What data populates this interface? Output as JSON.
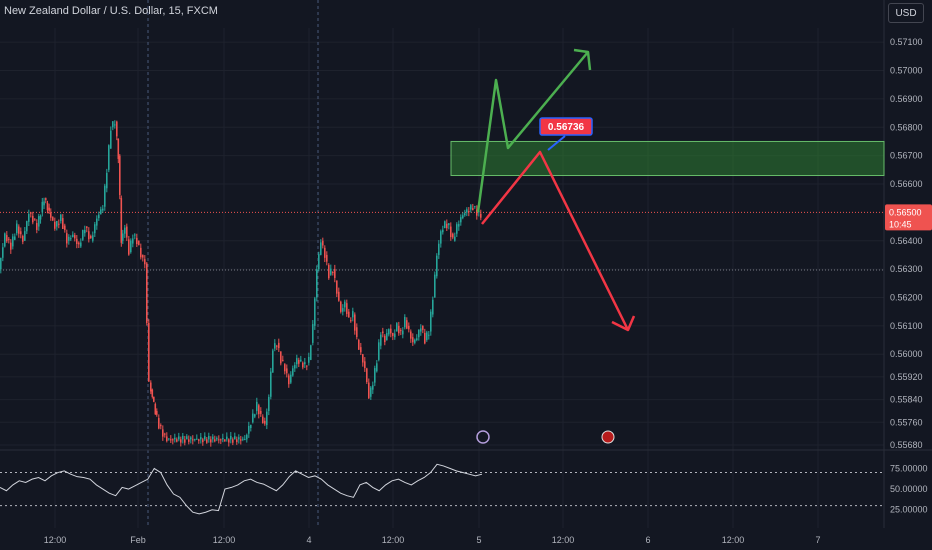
{
  "header": {
    "title": "New Zealand Dollar / U.S. Dollar, 15, FXCM",
    "currency_button": "USD"
  },
  "colors": {
    "up": "#26a69a",
    "down": "#ef5350",
    "bg": "#131722",
    "grid": "#1e222d",
    "zone": "#2e7d32",
    "arrow_green": "#4caf50",
    "arrow_red": "#f23645"
  },
  "chart_data": [
    {
      "type": "candlestick",
      "title": "New Zealand Dollar / U.S. Dollar, 15, FXCM",
      "y_ticks": [
        "0.57100",
        "0.57000",
        "0.56900",
        "0.56800",
        "0.56700",
        "0.56600",
        "0.56400",
        "0.56300",
        "0.56200",
        "0.56100",
        "0.56000",
        "0.55920",
        "0.55840",
        "0.55760",
        "0.55680"
      ],
      "x_ticks": [
        "12:00",
        "Feb",
        "12:00",
        "4",
        "12:00",
        "5",
        "12:00",
        "6",
        "12:00",
        "7"
      ],
      "current_price": "0.56500",
      "countdown": "10:45",
      "annotation_label": "0.56736",
      "zone": {
        "low": 0.5663,
        "high": 0.5675
      },
      "price_path": [
        [
          0,
          0.563
        ],
        [
          6,
          0.5642
        ],
        [
          12,
          0.5638
        ],
        [
          18,
          0.5645
        ],
        [
          24,
          0.564
        ],
        [
          30,
          0.565
        ],
        [
          38,
          0.5645
        ],
        [
          45,
          0.5655
        ],
        [
          50,
          0.565
        ],
        [
          56,
          0.5645
        ],
        [
          62,
          0.5648
        ],
        [
          68,
          0.564
        ],
        [
          74,
          0.5642
        ],
        [
          80,
          0.5638
        ],
        [
          86,
          0.5645
        ],
        [
          92,
          0.564
        ],
        [
          98,
          0.5648
        ],
        [
          104,
          0.5652
        ],
        [
          108,
          0.5665
        ],
        [
          112,
          0.568
        ],
        [
          116,
          0.5682
        ],
        [
          119,
          0.567
        ],
        [
          122,
          0.564
        ],
        [
          126,
          0.5645
        ],
        [
          130,
          0.5636
        ],
        [
          134,
          0.5642
        ],
        [
          138,
          0.564
        ],
        [
          142,
          0.5635
        ],
        [
          146,
          0.5632
        ],
        [
          150,
          0.559
        ],
        [
          153,
          0.5585
        ],
        [
          156,
          0.558
        ],
        [
          160,
          0.5575
        ],
        [
          164,
          0.5572
        ],
        [
          168,
          0.557
        ],
        [
          246,
          0.557
        ],
        [
          250,
          0.5574
        ],
        [
          254,
          0.5578
        ],
        [
          258,
          0.5582
        ],
        [
          262,
          0.5578
        ],
        [
          266,
          0.5575
        ],
        [
          270,
          0.5585
        ],
        [
          274,
          0.5602
        ],
        [
          278,
          0.5604
        ],
        [
          282,
          0.5598
        ],
        [
          286,
          0.5595
        ],
        [
          290,
          0.559
        ],
        [
          294,
          0.5595
        ],
        [
          298,
          0.5598
        ],
        [
          302,
          0.5597
        ],
        [
          306,
          0.5596
        ],
        [
          310,
          0.5598
        ],
        [
          314,
          0.561
        ],
        [
          318,
          0.563
        ],
        [
          322,
          0.564
        ],
        [
          326,
          0.5635
        ],
        [
          330,
          0.5628
        ],
        [
          334,
          0.563
        ],
        [
          338,
          0.5622
        ],
        [
          342,
          0.5615
        ],
        [
          346,
          0.5618
        ],
        [
          350,
          0.5612
        ],
        [
          354,
          0.5614
        ],
        [
          358,
          0.5605
        ],
        [
          362,
          0.56
        ],
        [
          366,
          0.5595
        ],
        [
          370,
          0.5585
        ],
        [
          374,
          0.559
        ],
        [
          378,
          0.5598
        ],
        [
          382,
          0.5608
        ],
        [
          386,
          0.5605
        ],
        [
          390,
          0.5609
        ],
        [
          394,
          0.5606
        ],
        [
          398,
          0.561
        ],
        [
          402,
          0.5607
        ],
        [
          406,
          0.5612
        ],
        [
          410,
          0.5608
        ],
        [
          414,
          0.5604
        ],
        [
          418,
          0.5606
        ],
        [
          422,
          0.561
        ],
        [
          426,
          0.5605
        ],
        [
          430,
          0.5608
        ],
        [
          434,
          0.562
        ],
        [
          438,
          0.5635
        ],
        [
          442,
          0.5643
        ],
        [
          446,
          0.5646
        ],
        [
          450,
          0.5645
        ],
        [
          454,
          0.564
        ],
        [
          458,
          0.5645
        ],
        [
          462,
          0.5648
        ],
        [
          466,
          0.565
        ],
        [
          470,
          0.5651
        ],
        [
          474,
          0.5652
        ],
        [
          478,
          0.565
        ],
        [
          482,
          0.5649
        ]
      ]
    },
    {
      "type": "line",
      "y_ticks": [
        "75.00000",
        "50.00000",
        "25.00000"
      ],
      "levels": [
        70,
        30
      ],
      "x_range": [
        0,
        482
      ],
      "y_range": [
        15,
        90
      ],
      "values": [
        52,
        48,
        55,
        60,
        58,
        62,
        64,
        60,
        66,
        70,
        72,
        68,
        65,
        64,
        62,
        55,
        50,
        45,
        42,
        52,
        50,
        54,
        58,
        62,
        75,
        70,
        55,
        44,
        40,
        30,
        22,
        20,
        22,
        25,
        24,
        50,
        52,
        55,
        60,
        62,
        58,
        56,
        52,
        48,
        55,
        65,
        72,
        68,
        64,
        66,
        62,
        55,
        50,
        45,
        42,
        40,
        55,
        58,
        52,
        48,
        55,
        60,
        62,
        58,
        55,
        60,
        64,
        70,
        80,
        78,
        75,
        72,
        70,
        68,
        66,
        68
      ]
    }
  ]
}
